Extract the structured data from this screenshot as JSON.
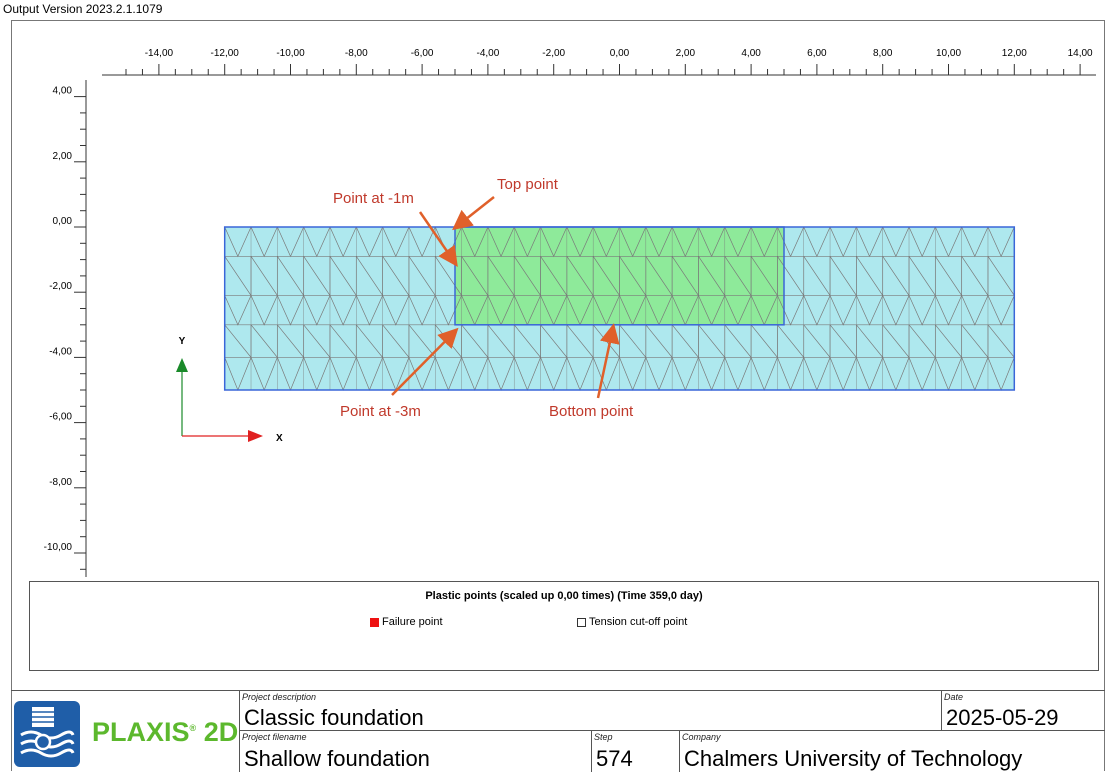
{
  "window": {
    "version_text": "Output Version 2023.2.1.1079"
  },
  "ruler": {
    "x_ticks": [
      "-14,00",
      "-12,00",
      "-10,00",
      "-8,00",
      "-6,00",
      "-4,00",
      "-2,00",
      "0,00",
      "2,00",
      "4,00",
      "6,00",
      "8,00",
      "10,00",
      "12,00",
      "14,00"
    ],
    "y_ticks": [
      "4,00",
      "2,00",
      "0,00",
      "-2,00",
      "-4,00",
      "-6,00",
      "-8,00",
      "-10,00"
    ]
  },
  "axes_glyph": {
    "x_label": "X",
    "y_label": "Y"
  },
  "annotations": {
    "top_point": "Top point",
    "point_1m": "Point at -1m",
    "point_3m": "Point at -3m",
    "bottom_point": "Bottom point"
  },
  "legend": {
    "title": "Plastic points (scaled up 0,00 times) (Time 359,0 day)",
    "failure_label": "Failure point",
    "tension_label": "Tension cut-off point"
  },
  "titleblock": {
    "logo_text": "PLAXIS",
    "logo_suffix": "2D",
    "project_description_label": "Project description",
    "project_description": "Classic foundation",
    "project_filename_label": "Project filename",
    "project_filename": "Shallow foundation",
    "step_label": "Step",
    "step": "574",
    "company_label": "Company",
    "company": "Chalmers University of Technology",
    "date_label": "Date",
    "date": "2025-05-29"
  },
  "colors": {
    "soil_fill": "#aee8ee",
    "foundation_fill": "#8eea9a",
    "mesh_outline": "#3a66d8",
    "mesh_line": "#7a7a7a",
    "annotation": "#c0392b",
    "arrow": "#e0602a",
    "axis_x": "#e02020",
    "axis_y": "#1a8a2a",
    "failure": "#ee1111",
    "brand_blue": "#1f5ea8",
    "brand_green": "#5cb82d"
  }
}
